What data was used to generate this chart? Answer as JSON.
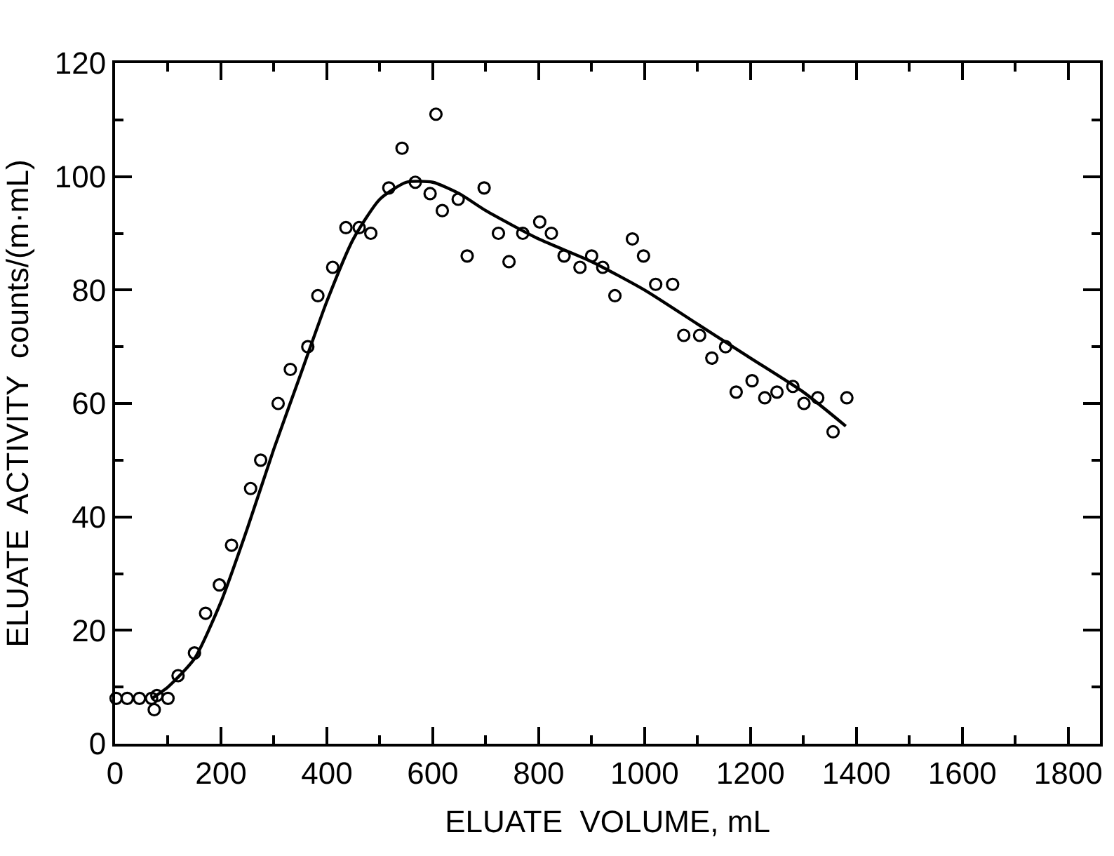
{
  "chart_data": {
    "type": "scatter",
    "xlabel": "ELUATE  VOLUME, mL",
    "ylabel": "ELUATE  ACTIVITY  counts/(m·mL)",
    "xlim": [
      0,
      1860
    ],
    "xticks": [
      0,
      200,
      400,
      600,
      800,
      1000,
      1200,
      1400,
      1600,
      1800
    ],
    "ylim": [
      0,
      120
    ],
    "yticks": [
      0,
      20,
      40,
      60,
      80,
      100,
      120
    ],
    "marker": "circle",
    "series": [
      {
        "color": "#000000",
        "x": [
          2,
          23,
          46,
          69,
          74,
          79,
          100,
          119,
          150,
          171,
          197,
          220,
          256,
          275,
          308,
          331,
          364,
          383,
          411,
          436,
          461,
          483,
          517,
          542,
          567,
          595,
          606,
          618,
          648,
          665,
          697,
          724,
          744,
          770,
          802,
          824,
          848,
          878,
          900,
          921,
          944,
          977,
          998,
          1021,
          1053,
          1074,
          1104,
          1127,
          1153,
          1173,
          1203,
          1227,
          1250,
          1280,
          1301,
          1327,
          1356,
          1382
        ],
        "values": [
          8,
          8,
          8,
          8,
          6,
          8.5,
          8,
          12,
          16,
          23,
          28,
          35,
          45,
          50,
          60,
          66,
          70,
          79,
          84,
          91,
          91,
          90,
          98,
          105,
          99,
          97,
          111,
          94,
          96,
          86,
          98,
          90,
          85,
          90,
          92,
          90,
          86,
          84,
          86,
          84,
          79,
          89,
          86,
          81,
          81,
          72,
          72,
          68,
          70,
          62,
          64,
          61,
          62,
          63,
          60,
          61,
          55,
          61
        ]
      },
      {
        "type": "line",
        "color": "#000000",
        "marker": "none",
        "line_style": "solid",
        "x": [
          70,
          100,
          150,
          200,
          250,
          300,
          350,
          400,
          450,
          500,
          550,
          600,
          650,
          700,
          800,
          900,
          1000,
          1100,
          1200,
          1300,
          1380
        ],
        "values": [
          8,
          10,
          15,
          25,
          38,
          52,
          65,
          78,
          89,
          96,
          99,
          99,
          97,
          94,
          89,
          85,
          80,
          74,
          68,
          62,
          56
        ]
      }
    ]
  }
}
